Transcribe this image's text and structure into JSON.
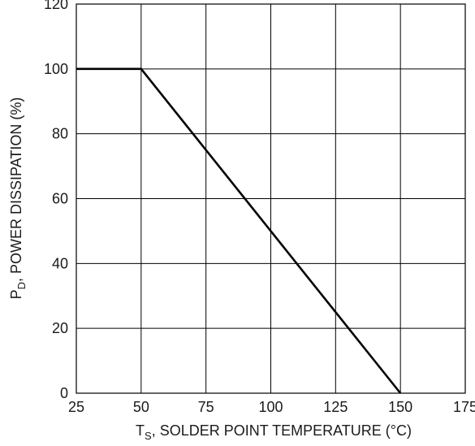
{
  "chart_data": {
    "type": "line",
    "title": "",
    "xlabel": {
      "main": "T",
      "subscript": "S",
      "rest": ", SOLDER POINT TEMPERATURE (°C)"
    },
    "ylabel": {
      "main": "P",
      "subscript": "D",
      "rest": ", POWER DISSIPATION (%)"
    },
    "xlim": [
      25,
      175
    ],
    "ylim": [
      0,
      120
    ],
    "x_ticks": [
      25,
      50,
      75,
      100,
      125,
      150,
      175
    ],
    "y_ticks": [
      0,
      20,
      40,
      60,
      80,
      100,
      120
    ],
    "grid": true,
    "series": [
      {
        "x": [
          25,
          50,
          150
        ],
        "y": [
          100,
          100,
          0
        ]
      }
    ],
    "colors": {
      "line": "#000000",
      "grid": "#000000",
      "text": "#1a1a1a"
    }
  }
}
